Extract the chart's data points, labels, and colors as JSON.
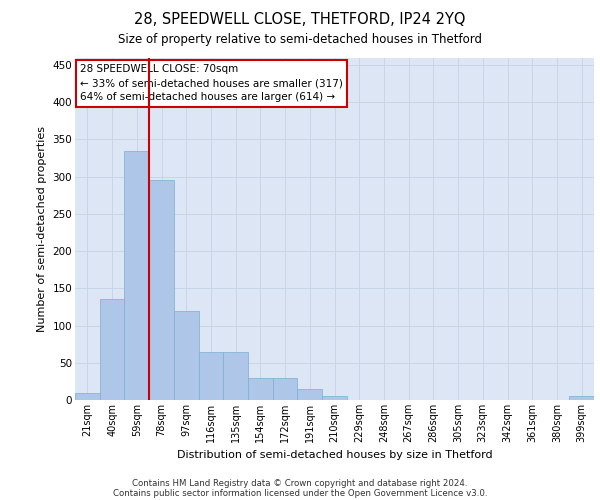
{
  "title1": "28, SPEEDWELL CLOSE, THETFORD, IP24 2YQ",
  "title2": "Size of property relative to semi-detached houses in Thetford",
  "xlabel": "Distribution of semi-detached houses by size in Thetford",
  "ylabel": "Number of semi-detached properties",
  "categories": [
    "21sqm",
    "40sqm",
    "59sqm",
    "78sqm",
    "97sqm",
    "116sqm",
    "135sqm",
    "154sqm",
    "172sqm",
    "191sqm",
    "210sqm",
    "229sqm",
    "248sqm",
    "267sqm",
    "286sqm",
    "305sqm",
    "323sqm",
    "342sqm",
    "361sqm",
    "380sqm",
    "399sqm"
  ],
  "values": [
    10,
    135,
    335,
    295,
    120,
    65,
    65,
    30,
    30,
    15,
    5,
    0,
    0,
    0,
    0,
    0,
    0,
    0,
    0,
    0,
    5
  ],
  "bar_color": "#aec6e8",
  "bar_edge_color": "#7aafd4",
  "grid_color": "#c8d4e8",
  "background_color": "#dce6f5",
  "annotation_box_color": "#ffffff",
  "annotation_border_color": "#cc0000",
  "vline_color": "#cc0000",
  "vline_x_index": 2.5,
  "annotation_line1": "28 SPEEDWELL CLOSE: 70sqm",
  "annotation_line2": "← 33% of semi-detached houses are smaller (317)",
  "annotation_line3": "64% of semi-detached houses are larger (614) →",
  "footer1": "Contains HM Land Registry data © Crown copyright and database right 2024.",
  "footer2": "Contains public sector information licensed under the Open Government Licence v3.0.",
  "ylim": [
    0,
    460
  ],
  "yticks": [
    0,
    50,
    100,
    150,
    200,
    250,
    300,
    350,
    400,
    450
  ]
}
